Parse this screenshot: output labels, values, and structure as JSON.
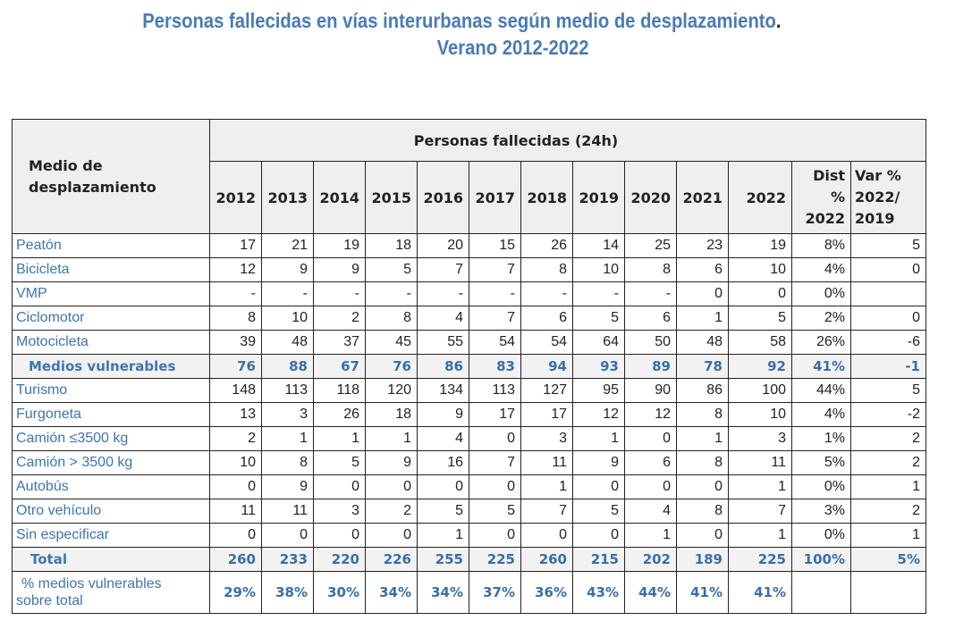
{
  "title": {
    "line1": "Personas fallecidas en vías interurbanas según medio de desplazamiento",
    "line1_end": ".",
    "line2": "Verano 2012-2022"
  },
  "table": {
    "corner_label_1": "Medio de",
    "corner_label_2": "desplazamiento",
    "super_header": "Personas fallecidas  (24h)",
    "years": [
      "2012",
      "2013",
      "2014",
      "2015",
      "2016",
      "2017",
      "2018",
      "2019",
      "2020",
      "2021",
      "2022"
    ],
    "dist_header": [
      "Dist",
      "%",
      "2022"
    ],
    "var_header": [
      "Var %",
      "2022/",
      "2019"
    ],
    "rows": [
      {
        "label": "Peatón",
        "values": [
          "17",
          "21",
          "19",
          "18",
          "20",
          "15",
          "26",
          "14",
          "25",
          "23",
          "19"
        ],
        "dist": "8%",
        "var": "5"
      },
      {
        "label": "Bicicleta",
        "values": [
          "12",
          "9",
          "9",
          "5",
          "7",
          "7",
          "8",
          "10",
          "8",
          "6",
          "10"
        ],
        "dist": "4%",
        "var": "0"
      },
      {
        "label": "VMP",
        "values": [
          "-",
          "-",
          "-",
          "-",
          "-",
          "-",
          "-",
          "-",
          "-",
          "0",
          "0"
        ],
        "dist": "0%",
        "var": ""
      },
      {
        "label": "Ciclomotor",
        "values": [
          "8",
          "10",
          "2",
          "8",
          "4",
          "7",
          "6",
          "5",
          "6",
          "1",
          "5"
        ],
        "dist": "2%",
        "var": "0"
      },
      {
        "label": "Motocicleta",
        "values": [
          "39",
          "48",
          "37",
          "45",
          "55",
          "54",
          "54",
          "64",
          "50",
          "48",
          "58"
        ],
        "dist": "26%",
        "var": "-6"
      },
      {
        "label": "Medios vulnerables",
        "bold": true,
        "values": [
          "76",
          "88",
          "67",
          "76",
          "86",
          "83",
          "94",
          "93",
          "89",
          "78",
          "92"
        ],
        "dist": "41%",
        "var": "-1"
      },
      {
        "label": "Turismo",
        "values": [
          "148",
          "113",
          "118",
          "120",
          "134",
          "113",
          "127",
          "95",
          "90",
          "86",
          "100"
        ],
        "dist": "44%",
        "var": "5"
      },
      {
        "label": "Furgoneta",
        "values": [
          "13",
          "3",
          "26",
          "18",
          "9",
          "17",
          "17",
          "12",
          "12",
          "8",
          "10"
        ],
        "dist": "4%",
        "var": "-2"
      },
      {
        "label": "Camión ≤3500 kg",
        "values": [
          "2",
          "1",
          "1",
          "1",
          "4",
          "0",
          "3",
          "1",
          "0",
          "1",
          "3"
        ],
        "dist": "1%",
        "var": "2"
      },
      {
        "label": "Camión > 3500 kg",
        "values": [
          "10",
          "8",
          "5",
          "9",
          "16",
          "7",
          "11",
          "9",
          "6",
          "8",
          "11"
        ],
        "dist": "5%",
        "var": "2"
      },
      {
        "label": "Autobús",
        "values": [
          "0",
          "9",
          "0",
          "0",
          "0",
          "0",
          "1",
          "0",
          "0",
          "0",
          "1"
        ],
        "dist": "0%",
        "var": "1"
      },
      {
        "label": "Otro vehículo",
        "values": [
          "11",
          "11",
          "3",
          "2",
          "5",
          "5",
          "7",
          "5",
          "4",
          "8",
          "7"
        ],
        "dist": "3%",
        "var": "2"
      },
      {
        "label": "Sin especificar",
        "values": [
          "0",
          "0",
          "0",
          "0",
          "1",
          "0",
          "0",
          "0",
          "1",
          "0",
          "1"
        ],
        "dist": "0%",
        "var": "1"
      }
    ],
    "total": {
      "label": "Total",
      "values": [
        "260",
        "233",
        "220",
        "226",
        "255",
        "225",
        "260",
        "215",
        "202",
        "189",
        "225"
      ],
      "dist": "100%",
      "var": "5%"
    },
    "pct_vulnerable": {
      "label_1": "% medios vulnerables",
      "label_2": "sobre total",
      "values": [
        "29%",
        "38%",
        "30%",
        "34%",
        "34%",
        "37%",
        "36%",
        "43%",
        "44%",
        "41%",
        "41%"
      ],
      "dist": "",
      "var": ""
    }
  },
  "colors": {
    "title_blue": "#4a7bb5",
    "header_blue": "#3a6ea8",
    "label_blue": "#3f74b0",
    "header_bg": "#efefef"
  }
}
